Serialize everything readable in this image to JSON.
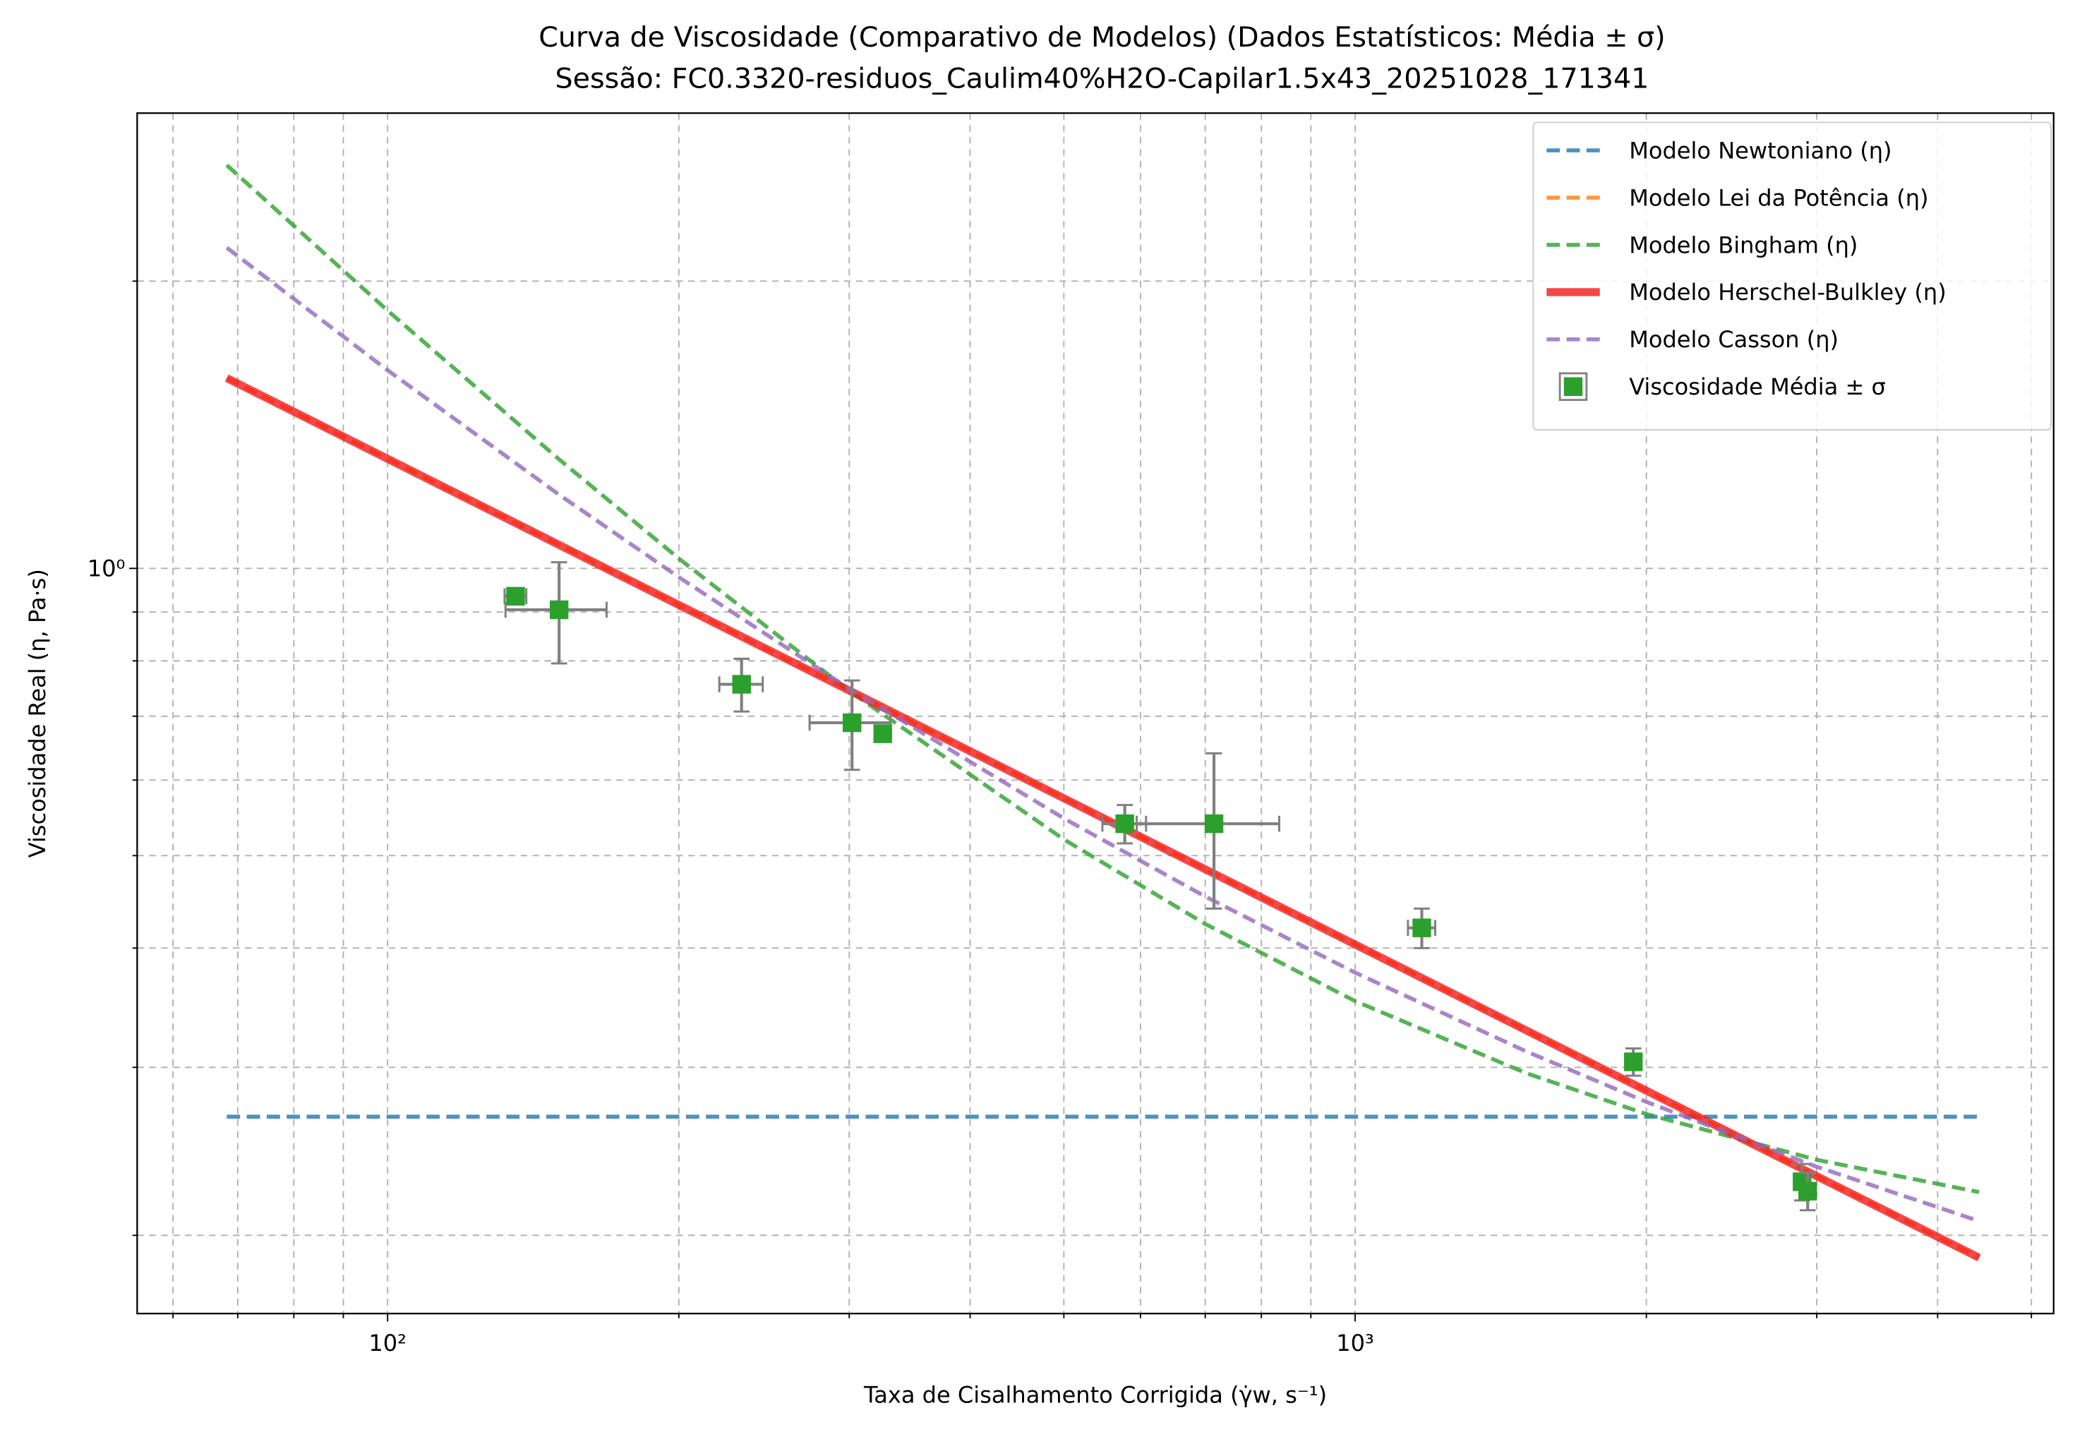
{
  "chart_data": {
    "type": "line",
    "title": "Curva de Viscosidade (Comparativo de Modelos) (Dados Estatísticos: Média ± σ)",
    "subtitle": "Sessão: FC0.3320-residuos_Caulim40%H2O-Capilar1.5x43_20251028_171341",
    "x_label": "Taxa de Cisalhamento Corrigida (γ̇w, s⁻¹)",
    "y_label": "Viscosidade Real (η, Pa·s)",
    "xscale": "log",
    "yscale": "log",
    "xlim": [
      55.1,
      5272
    ],
    "ylim": [
      0.1656,
      3.0
    ],
    "xticks": [
      {
        "value": 100,
        "label": "10²"
      },
      {
        "value": 1000,
        "label": "10³"
      }
    ],
    "yticks": [
      {
        "value": 1,
        "label": "10⁰"
      }
    ],
    "xminorticks": [
      60,
      70,
      80,
      90,
      200,
      300,
      400,
      500,
      600,
      700,
      800,
      900,
      2000,
      3000,
      4000,
      5000
    ],
    "yminorticks": [
      0.2,
      0.3,
      0.4,
      0.5,
      0.6,
      0.7,
      0.8,
      0.9,
      2
    ],
    "grid": true,
    "legend": "upper right",
    "series": [
      {
        "name": "Modelo Newtoniano (η)",
        "type": "line",
        "color": "#1f77b4",
        "dashed": true,
        "width": 3,
        "x": [
          68.2,
          4415
        ],
        "values": [
          0.2663,
          0.2663
        ]
      },
      {
        "name": "Modelo Lei da Potência (η)",
        "type": "line",
        "color": "#ff7f0e",
        "dashed": true,
        "width": 3,
        "x": [
          68.2,
          4415
        ],
        "values": [
          1.583,
          0.1895
        ]
      },
      {
        "name": "Modelo Bingham (η)",
        "type": "line",
        "color": "#2ca02c",
        "dashed": true,
        "width": 3,
        "x": [
          68.2,
          100,
          150,
          200,
          300,
          500,
          700,
          1000,
          1500,
          2000,
          3000,
          4415
        ],
        "values": [
          2.646,
          1.863,
          1.304,
          1.024,
          0.744,
          0.52,
          0.424,
          0.352,
          0.296,
          0.268,
          0.24,
          0.222
        ]
      },
      {
        "name": "Modelo Herschel-Bulkley (η)",
        "type": "line",
        "color": "#f21a1a",
        "dashed": false,
        "width": 6,
        "x": [
          68.2,
          4415
        ],
        "values": [
          1.583,
          0.1895
        ]
      },
      {
        "name": "Modelo Casson (η)",
        "type": "line",
        "color": "#9467bd",
        "dashed": true,
        "width": 3,
        "x": [
          68.2,
          100,
          150,
          200,
          300,
          500,
          700,
          1000,
          1500,
          2000,
          3000,
          4415
        ],
        "values": [
          2.168,
          1.613,
          1.197,
          0.979,
          0.748,
          0.547,
          0.453,
          0.377,
          0.312,
          0.276,
          0.236,
          0.207
        ]
      },
      {
        "name": "Viscosidade Média ± σ",
        "type": "errorbar",
        "color": "#2ca02c",
        "error_color": "#808080",
        "x": [
          135.6,
          150.4,
          232.2,
          302,
          324.9,
          578,
          714.7,
          1172,
          1939,
          2897,
          2936
        ],
        "values": [
          0.935,
          0.905,
          0.756,
          0.689,
          0.671,
          0.54,
          0.54,
          0.42,
          0.304,
          0.2276,
          0.2225
        ],
        "xerr": [
          3.5,
          18,
          12,
          29,
          3,
          30,
          120,
          38,
          20,
          20,
          20
        ],
        "yerr": [
          0.015,
          0.11,
          0.048,
          0.074,
          0.01,
          0.025,
          0.1,
          0.02,
          0.01,
          0.01,
          0.01
        ]
      }
    ]
  }
}
